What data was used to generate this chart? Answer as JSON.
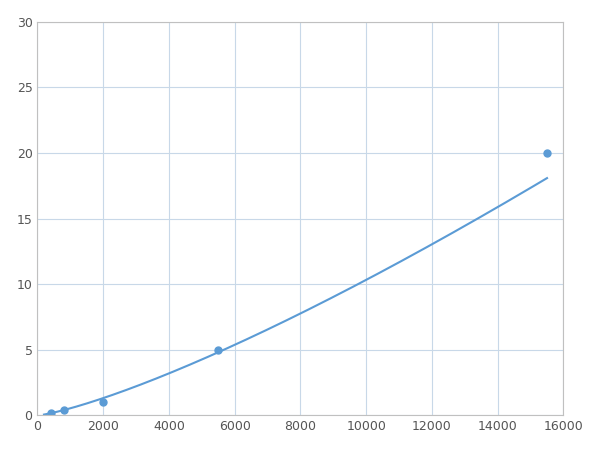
{
  "x": [
    400,
    800,
    2000,
    5500,
    15500
  ],
  "y": [
    0.2,
    0.4,
    1.0,
    5.0,
    20.0
  ],
  "line_color": "#5b9bd5",
  "marker_color": "#5b9bd5",
  "marker_size": 5,
  "xlim": [
    0,
    16000
  ],
  "ylim": [
    0,
    30
  ],
  "xticks": [
    0,
    2000,
    4000,
    6000,
    8000,
    10000,
    12000,
    14000,
    16000
  ],
  "yticks": [
    0,
    5,
    10,
    15,
    20,
    25,
    30
  ],
  "grid": true,
  "background_color": "#ffffff"
}
